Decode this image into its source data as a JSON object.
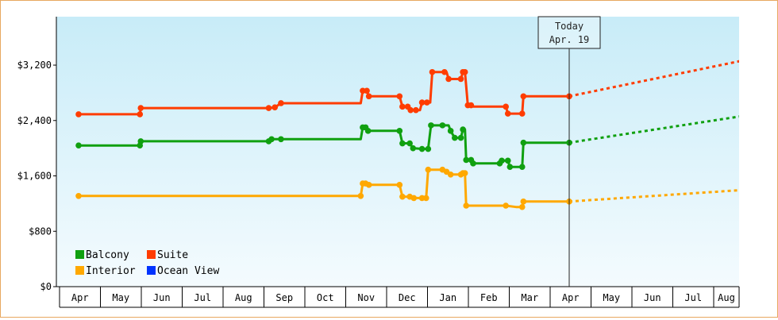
{
  "chart_data": {
    "type": "line",
    "title": "",
    "xlabel": "",
    "ylabel": "",
    "ylim": [
      0,
      3900
    ],
    "y_ticks": [
      0,
      800,
      1600,
      2400,
      3200
    ],
    "y_tick_labels": [
      "$0",
      "$800",
      "$1,600",
      "$2,400",
      "$3,200"
    ],
    "x_range_months": [
      "Apr",
      "Aug"
    ],
    "x_tick_labels": [
      "Apr",
      "May",
      "Jun",
      "Jul",
      "Aug",
      "Sep",
      "Oct",
      "Nov",
      "Dec",
      "Jan",
      "Feb",
      "Mar",
      "Apr",
      "May",
      "Jun",
      "Jul",
      "Aug"
    ],
    "today_label": [
      "Today",
      "Apr. 19"
    ],
    "legend_placement": "bottom-left",
    "background_gradient": [
      "#c8ecf8",
      "#f4fbfe"
    ],
    "series": [
      {
        "name": "Suite",
        "color": "#ff3c00",
        "step": true,
        "points": [
          [
            0.0,
            2490
          ],
          [
            1.5,
            2490
          ],
          [
            1.52,
            2580
          ],
          [
            4.65,
            2580
          ],
          [
            4.8,
            2590
          ],
          [
            4.95,
            2650
          ],
          [
            6.9,
            2650
          ],
          [
            6.95,
            2830
          ],
          [
            7.05,
            2830
          ],
          [
            7.1,
            2750
          ],
          [
            7.85,
            2750
          ],
          [
            7.92,
            2600
          ],
          [
            8.05,
            2600
          ],
          [
            8.12,
            2550
          ],
          [
            8.25,
            2550
          ],
          [
            8.35,
            2550
          ],
          [
            8.4,
            2660
          ],
          [
            8.52,
            2660
          ],
          [
            8.6,
            2660
          ],
          [
            8.65,
            3100
          ],
          [
            8.95,
            3100
          ],
          [
            9.0,
            3100
          ],
          [
            9.05,
            3000
          ],
          [
            9.35,
            3000
          ],
          [
            9.4,
            3100
          ],
          [
            9.45,
            3100
          ],
          [
            9.52,
            2620
          ],
          [
            9.6,
            2620
          ],
          [
            9.65,
            2600
          ],
          [
            10.45,
            2600
          ],
          [
            10.5,
            2500
          ],
          [
            10.7,
            2500
          ],
          [
            10.85,
            2500
          ],
          [
            10.88,
            2750
          ],
          [
            11.1,
            2750
          ],
          [
            12.0,
            2750
          ]
        ],
        "forecast": [
          [
            12.0,
            2750
          ],
          [
            16.85,
            3340
          ]
        ]
      },
      {
        "name": "Balcony",
        "color": "#10a010",
        "step": true,
        "points": [
          [
            0.0,
            2040
          ],
          [
            1.5,
            2040
          ],
          [
            1.52,
            2100
          ],
          [
            4.65,
            2100
          ],
          [
            4.72,
            2130
          ],
          [
            4.95,
            2130
          ],
          [
            6.9,
            2130
          ],
          [
            6.95,
            2300
          ],
          [
            7.02,
            2300
          ],
          [
            7.08,
            2250
          ],
          [
            7.85,
            2250
          ],
          [
            7.92,
            2070
          ],
          [
            8.1,
            2070
          ],
          [
            8.18,
            2000
          ],
          [
            8.4,
            1990
          ],
          [
            8.55,
            1990
          ],
          [
            8.62,
            2330
          ],
          [
            8.9,
            2330
          ],
          [
            9.05,
            2330
          ],
          [
            9.1,
            2250
          ],
          [
            9.2,
            2150
          ],
          [
            9.35,
            2150
          ],
          [
            9.4,
            2270
          ],
          [
            9.45,
            2270
          ],
          [
            9.48,
            1830
          ],
          [
            9.6,
            1830
          ],
          [
            9.65,
            1780
          ],
          [
            10.3,
            1780
          ],
          [
            10.35,
            1820
          ],
          [
            10.5,
            1820
          ],
          [
            10.55,
            1730
          ],
          [
            10.85,
            1730
          ],
          [
            10.88,
            2080
          ],
          [
            11.1,
            2080
          ],
          [
            12.0,
            2080
          ]
        ],
        "forecast": [
          [
            12.0,
            2080
          ],
          [
            16.85,
            2520
          ]
        ]
      },
      {
        "name": "Interior",
        "color": "#ffa800",
        "step": true,
        "points": [
          [
            0.0,
            1310
          ],
          [
            6.9,
            1310
          ],
          [
            6.95,
            1490
          ],
          [
            7.02,
            1490
          ],
          [
            7.1,
            1470
          ],
          [
            7.85,
            1470
          ],
          [
            7.92,
            1300
          ],
          [
            8.1,
            1300
          ],
          [
            8.2,
            1280
          ],
          [
            8.4,
            1280
          ],
          [
            8.5,
            1280
          ],
          [
            8.55,
            1690
          ],
          [
            8.9,
            1690
          ],
          [
            9.0,
            1660
          ],
          [
            9.1,
            1620
          ],
          [
            9.35,
            1620
          ],
          [
            9.4,
            1640
          ],
          [
            9.45,
            1640
          ],
          [
            9.48,
            1170
          ],
          [
            10.45,
            1170
          ],
          [
            10.7,
            1150
          ],
          [
            10.85,
            1150
          ],
          [
            10.88,
            1230
          ],
          [
            11.1,
            1230
          ],
          [
            12.0,
            1230
          ]
        ],
        "forecast": [
          [
            12.0,
            1230
          ],
          [
            16.85,
            1420
          ]
        ]
      }
    ],
    "markers": {
      "Suite": [
        [
          0.0,
          2490
        ],
        [
          1.5,
          2490
        ],
        [
          1.52,
          2580
        ],
        [
          4.65,
          2580
        ],
        [
          4.8,
          2590
        ],
        [
          4.95,
          2650
        ],
        [
          6.95,
          2830
        ],
        [
          7.05,
          2830
        ],
        [
          7.1,
          2750
        ],
        [
          7.85,
          2750
        ],
        [
          7.92,
          2600
        ],
        [
          8.05,
          2600
        ],
        [
          8.12,
          2550
        ],
        [
          8.25,
          2550
        ],
        [
          8.4,
          2660
        ],
        [
          8.52,
          2660
        ],
        [
          8.65,
          3100
        ],
        [
          8.95,
          3100
        ],
        [
          9.05,
          3000
        ],
        [
          9.35,
          3000
        ],
        [
          9.4,
          3100
        ],
        [
          9.45,
          3100
        ],
        [
          9.52,
          2620
        ],
        [
          9.6,
          2620
        ],
        [
          10.45,
          2600
        ],
        [
          10.5,
          2500
        ],
        [
          10.85,
          2500
        ],
        [
          10.88,
          2750
        ],
        [
          12.0,
          2750
        ]
      ],
      "Balcony": [
        [
          0.0,
          2040
        ],
        [
          1.5,
          2040
        ],
        [
          1.52,
          2100
        ],
        [
          4.65,
          2100
        ],
        [
          4.72,
          2130
        ],
        [
          4.95,
          2130
        ],
        [
          6.95,
          2300
        ],
        [
          7.02,
          2300
        ],
        [
          7.08,
          2250
        ],
        [
          7.85,
          2250
        ],
        [
          7.92,
          2070
        ],
        [
          8.1,
          2070
        ],
        [
          8.18,
          2000
        ],
        [
          8.4,
          1990
        ],
        [
          8.55,
          1990
        ],
        [
          8.62,
          2330
        ],
        [
          8.9,
          2330
        ],
        [
          9.1,
          2250
        ],
        [
          9.2,
          2150
        ],
        [
          9.35,
          2150
        ],
        [
          9.4,
          2270
        ],
        [
          9.48,
          1830
        ],
        [
          9.6,
          1830
        ],
        [
          9.65,
          1780
        ],
        [
          10.3,
          1780
        ],
        [
          10.35,
          1820
        ],
        [
          10.5,
          1820
        ],
        [
          10.55,
          1730
        ],
        [
          10.85,
          1730
        ],
        [
          10.88,
          2080
        ],
        [
          12.0,
          2080
        ]
      ],
      "Interior": [
        [
          0.0,
          1310
        ],
        [
          6.9,
          1310
        ],
        [
          6.95,
          1490
        ],
        [
          7.02,
          1490
        ],
        [
          7.1,
          1470
        ],
        [
          7.85,
          1470
        ],
        [
          7.92,
          1300
        ],
        [
          8.1,
          1300
        ],
        [
          8.2,
          1280
        ],
        [
          8.4,
          1280
        ],
        [
          8.5,
          1280
        ],
        [
          8.55,
          1690
        ],
        [
          8.9,
          1690
        ],
        [
          9.0,
          1660
        ],
        [
          9.1,
          1620
        ],
        [
          9.35,
          1620
        ],
        [
          9.4,
          1640
        ],
        [
          9.45,
          1640
        ],
        [
          9.48,
          1170
        ],
        [
          10.45,
          1170
        ],
        [
          10.85,
          1150
        ],
        [
          10.88,
          1230
        ],
        [
          12.0,
          1230
        ]
      ]
    },
    "legend": [
      {
        "name": "Balcony",
        "color": "#10a010"
      },
      {
        "name": "Suite",
        "color": "#ff3c00"
      },
      {
        "name": "Interior",
        "color": "#ffa800"
      },
      {
        "name": "Ocean View",
        "color": "#0033ff"
      }
    ]
  }
}
